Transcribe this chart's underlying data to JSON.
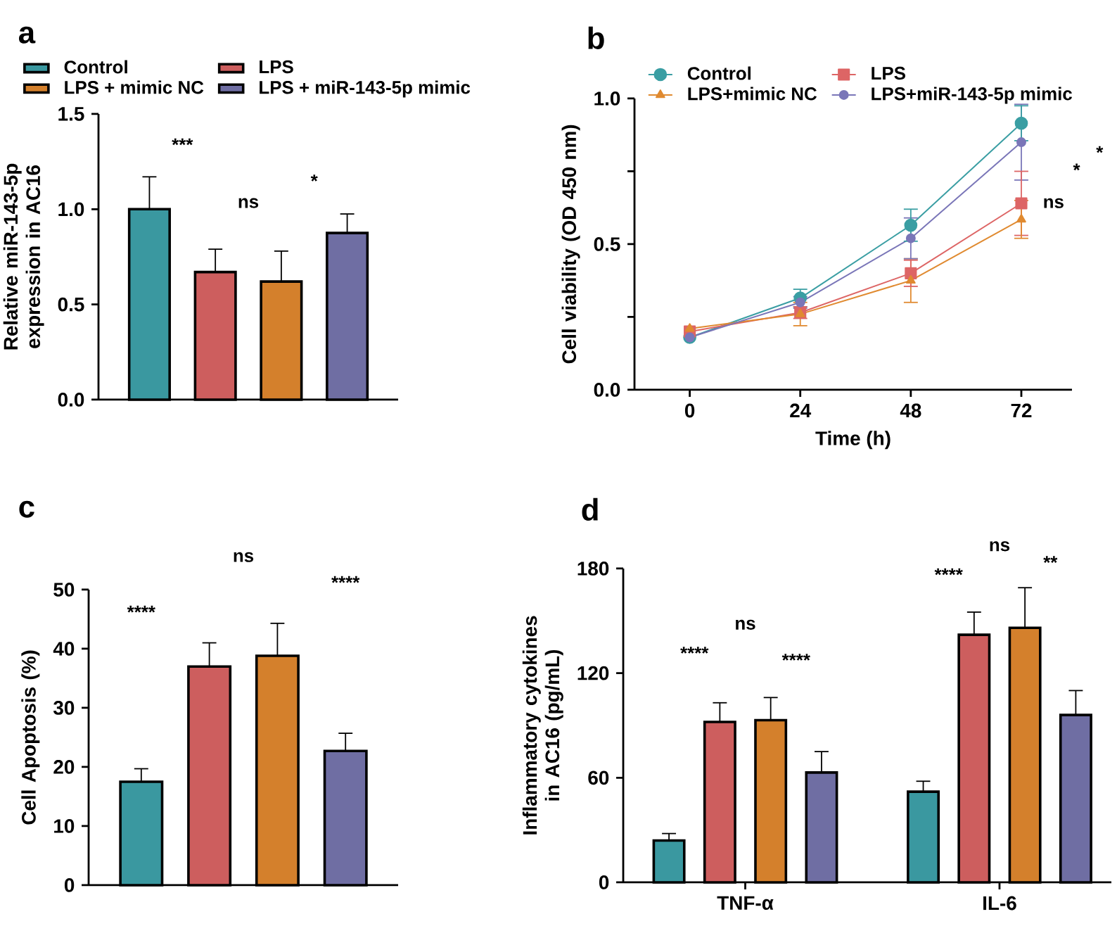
{
  "chart_data": [
    {
      "type": "bar",
      "title": "a",
      "ylabel": "Relative miR-143-5p expression in AC16",
      "categories": [
        null
      ],
      "series": [
        {
          "name": "Control",
          "color": "#3a98a0",
          "values": [
            1.0
          ],
          "errors": [
            0.17
          ]
        },
        {
          "name": "LPS",
          "color": "#cd5e5e",
          "values": [
            0.67
          ],
          "errors": [
            0.12
          ]
        },
        {
          "name": "LPS + mimic NC",
          "color": "#d4802c",
          "values": [
            0.62
          ],
          "errors": [
            0.16
          ]
        },
        {
          "name": "LPS + miR-143-5p mimic",
          "color": "#6f6ea3",
          "values": [
            0.875
          ],
          "errors": [
            0.1
          ]
        }
      ],
      "ylim": [
        0,
        1.5
      ],
      "yticks": [
        {
          "value": 0,
          "label": "0.0"
        },
        {
          "value": 0.5,
          "label": "0.5"
        },
        {
          "value": 1,
          "label": "1.0"
        },
        {
          "value": 1.5,
          "label": "1.5"
        }
      ],
      "tick_labels": "y",
      "legend": "top",
      "annotations": [
        "***",
        "ns",
        "*"
      ]
    },
    {
      "type": "line",
      "title": "b",
      "xlabel": "Time (h)",
      "ylabel": "Cell viability (OD 450 nm)",
      "x": [
        0,
        24,
        48,
        72
      ],
      "series": [
        {
          "name": "Control",
          "color": "#3a9ea3",
          "marker": "circle",
          "values": [
            0.18,
            0.315,
            0.565,
            0.915
          ],
          "errors": [
            null,
            0.03,
            0.055,
            0.06
          ]
        },
        {
          "name": "LPS",
          "color": "#dd6565",
          "marker": "square",
          "values": [
            0.2,
            0.265,
            0.4,
            0.64
          ],
          "errors": [
            null,
            0.02,
            0.045,
            0.11
          ]
        },
        {
          "name": "LPS+mimic NC",
          "color": "#e08a30",
          "marker": "triangle",
          "values": [
            0.21,
            0.26,
            0.375,
            0.585
          ],
          "errors": [
            null,
            0.04,
            0.075,
            0.065
          ]
        },
        {
          "name": "LPS+miR-143-5p mimic",
          "color": "#7a76b8",
          "marker": "circle",
          "values": [
            0.18,
            0.3,
            0.52,
            0.85
          ],
          "errors": [
            null,
            0.02,
            0.07,
            0.13
          ]
        }
      ],
      "xlim": [
        -12,
        83
      ],
      "xticks": [
        0,
        24,
        48,
        72
      ],
      "ylim": [
        0,
        1.0
      ],
      "yticks": [
        {
          "value": 0,
          "label": "0.0"
        },
        {
          "value": 0.25,
          "label": null
        },
        {
          "value": 0.5,
          "label": "0.5"
        },
        {
          "value": 0.75,
          "label": null
        },
        {
          "value": 1.0,
          "label": "1.0"
        }
      ],
      "legend": "top left",
      "annotations": [
        "*",
        "*",
        "ns"
      ]
    },
    {
      "type": "bar",
      "title": "c",
      "ylabel": "Cell Apoptosis (%)",
      "categories": [
        null
      ],
      "series": [
        {
          "color": "#3a98a0",
          "values": [
            17.5
          ],
          "errors": [
            2.2
          ]
        },
        {
          "color": "#cd5e5e",
          "values": [
            37
          ],
          "errors": [
            4
          ]
        },
        {
          "color": "#d4802c",
          "values": [
            38.8
          ],
          "errors": [
            5.5
          ]
        },
        {
          "color": "#6f6ea3",
          "values": [
            22.7
          ],
          "errors": [
            3
          ]
        }
      ],
      "ylim": [
        0,
        50
      ],
      "yticks": [
        0,
        10,
        20,
        30,
        40,
        50
      ],
      "tick_labels": "y",
      "annotations": [
        "****",
        "ns",
        "****"
      ]
    },
    {
      "type": "bar",
      "title": "d",
      "ylabel": "Inflammatory cytokines in AC16 (pg/mL)",
      "categories": [
        "TNF-α",
        "IL-6"
      ],
      "series": [
        {
          "color": "#3a98a0",
          "values": [
            24,
            52
          ],
          "errors": [
            4,
            6
          ]
        },
        {
          "color": "#cd5e5e",
          "values": [
            92,
            142
          ],
          "errors": [
            11,
            13
          ]
        },
        {
          "color": "#d4802c",
          "values": [
            93,
            146
          ],
          "errors": [
            13,
            23
          ]
        },
        {
          "color": "#6f6ea3",
          "values": [
            63,
            96
          ],
          "errors": [
            12,
            14
          ]
        }
      ],
      "ylim": [
        0,
        180
      ],
      "yticks": [
        0,
        60,
        120,
        180
      ],
      "annotations": [
        "****",
        "ns",
        "****",
        "****",
        "ns",
        "**"
      ]
    }
  ]
}
